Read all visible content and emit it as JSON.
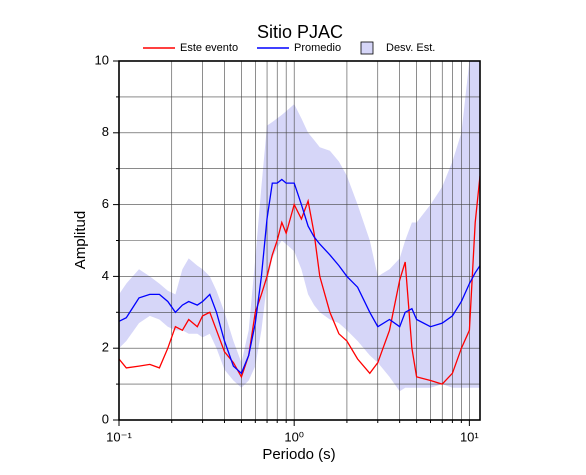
{
  "chart_data": {
    "type": "line",
    "title": "Sitio PJAC",
    "xlabel": "Periodo (s)",
    "ylabel": "Amplitud",
    "xscale": "log",
    "xlim": [
      0.1,
      11.5
    ],
    "ylim": [
      0,
      10
    ],
    "xticks": [
      {
        "value": 0.1,
        "label": "10⁻¹"
      },
      {
        "value": 1,
        "label": "10⁰"
      },
      {
        "value": 10,
        "label": "10¹"
      }
    ],
    "x_minor_ticks": [
      0.2,
      0.3,
      0.4,
      0.5,
      0.6,
      0.7,
      0.8,
      0.9,
      2,
      3,
      4,
      5,
      6,
      7,
      8,
      9
    ],
    "yticks": [
      0,
      2,
      4,
      6,
      8,
      10
    ],
    "y_minor_ticks": [
      1,
      3,
      5,
      7,
      9
    ],
    "grid": true,
    "legend": "top",
    "x": [
      0.1,
      0.11,
      0.13,
      0.15,
      0.17,
      0.19,
      0.21,
      0.23,
      0.25,
      0.28,
      0.3,
      0.33,
      0.36,
      0.4,
      0.45,
      0.5,
      0.55,
      0.6,
      0.65,
      0.7,
      0.75,
      0.8,
      0.85,
      0.9,
      1.0,
      1.1,
      1.2,
      1.3,
      1.4,
      1.6,
      1.8,
      2.0,
      2.3,
      2.7,
      3.0,
      3.5,
      4.0,
      4.3,
      4.7,
      5.0,
      6,
      7,
      8,
      9,
      10,
      10.8,
      11.5
    ],
    "series": [
      {
        "name": "Este evento",
        "color": "#ff0000",
        "values": [
          1.7,
          1.45,
          1.5,
          1.55,
          1.45,
          2.0,
          2.6,
          2.5,
          2.8,
          2.6,
          2.9,
          3.0,
          2.5,
          1.9,
          1.6,
          1.2,
          1.8,
          3.0,
          3.5,
          4.0,
          4.6,
          5.0,
          5.5,
          5.2,
          6.0,
          5.6,
          6.1,
          5.2,
          4.0,
          3.0,
          2.4,
          2.2,
          1.7,
          1.3,
          1.6,
          2.5,
          3.9,
          4.4,
          2.0,
          1.2,
          1.1,
          1.0,
          1.3,
          2.0,
          2.5,
          5.5,
          6.8
        ]
      },
      {
        "name": "Promedio",
        "color": "#0000ff",
        "values": [
          2.75,
          2.85,
          3.4,
          3.5,
          3.5,
          3.3,
          3.0,
          3.2,
          3.3,
          3.2,
          3.3,
          3.5,
          3.0,
          2.2,
          1.5,
          1.3,
          1.8,
          2.7,
          4.0,
          5.6,
          6.6,
          6.6,
          6.7,
          6.6,
          6.6,
          6.0,
          5.4,
          5.1,
          4.9,
          4.6,
          4.3,
          4.0,
          3.7,
          3.0,
          2.6,
          2.8,
          2.6,
          3.0,
          3.1,
          2.8,
          2.6,
          2.7,
          2.9,
          3.3,
          3.8,
          4.1,
          4.3
        ]
      },
      {
        "name": "Desv. Est.",
        "type": "band",
        "color": "#d6d6f8",
        "upper": [
          3.5,
          3.8,
          4.2,
          4.0,
          3.8,
          3.6,
          3.5,
          4.2,
          4.5,
          4.3,
          4.2,
          4.0,
          3.6,
          3.0,
          2.2,
          1.6,
          2.5,
          4.5,
          6.5,
          8.2,
          8.3,
          8.4,
          8.5,
          8.6,
          8.8,
          8.4,
          8.0,
          7.8,
          7.6,
          7.5,
          7.2,
          6.8,
          6.0,
          5.0,
          4.0,
          4.2,
          4.5,
          5.0,
          5.5,
          5.5,
          6.0,
          6.5,
          7.2,
          8.0,
          10,
          10,
          10
        ],
        "lower": [
          2.0,
          2.2,
          2.7,
          2.9,
          2.8,
          2.6,
          2.5,
          2.5,
          2.4,
          2.4,
          2.3,
          2.4,
          2.0,
          1.4,
          1.1,
          0.9,
          1.1,
          1.5,
          2.5,
          3.8,
          4.5,
          4.8,
          5.0,
          4.9,
          4.7,
          4.2,
          3.5,
          3.2,
          3.0,
          2.8,
          2.7,
          2.5,
          2.2,
          1.8,
          1.6,
          1.2,
          0.8,
          0.9,
          0.9,
          0.9,
          0.9,
          1.0,
          0.9,
          0.9,
          0.9,
          0.9,
          0.9
        ]
      }
    ]
  }
}
